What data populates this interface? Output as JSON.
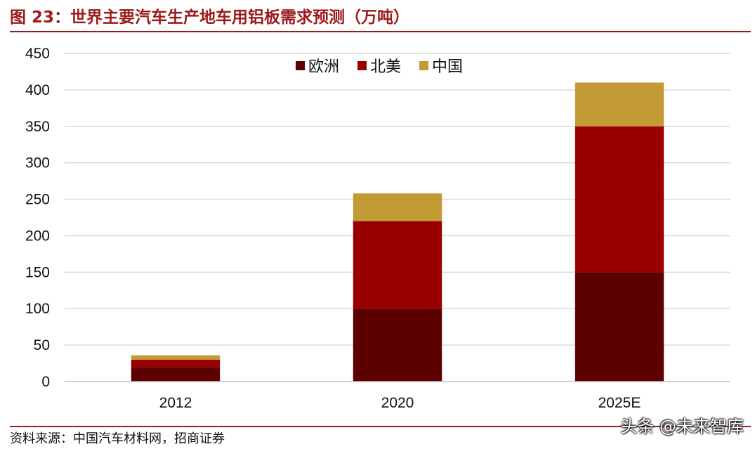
{
  "header": {
    "figure_title": "图 23：世界主要汽车生产地车用铝板需求预测（万吨）"
  },
  "footer": {
    "source_text": "资料来源：中国汽车材料网，招商证券",
    "watermark_text": "头条 @未来智库"
  },
  "chart_data": {
    "type": "bar",
    "stacked": true,
    "title": "",
    "xlabel": "",
    "ylabel": "",
    "categories": [
      "2012",
      "2020",
      "2025E"
    ],
    "series": [
      {
        "name": "欧洲",
        "values": [
          20,
          100,
          150
        ],
        "color": "#5c0000"
      },
      {
        "name": "北美",
        "values": [
          10,
          120,
          200
        ],
        "color": "#990000"
      },
      {
        "name": "中国",
        "values": [
          6,
          38,
          60
        ],
        "color": "#c39b36"
      }
    ],
    "ylim": [
      0,
      450
    ],
    "yticks": [
      0,
      50,
      100,
      150,
      200,
      250,
      300,
      350,
      400,
      450
    ],
    "grid": true,
    "legend_position": "top-center"
  }
}
